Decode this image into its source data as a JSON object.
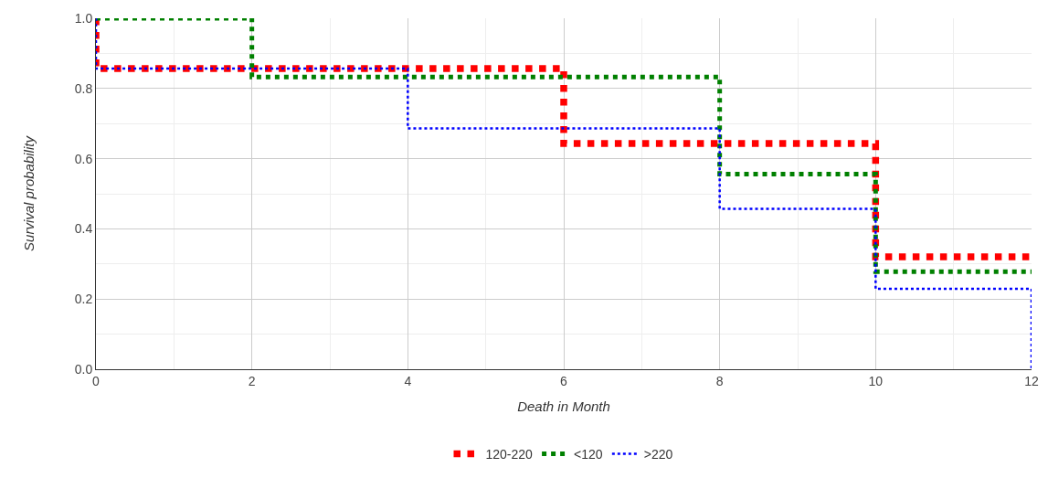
{
  "chart_data": {
    "type": "step",
    "xlabel": "Death in Month",
    "ylabel": "Survival probability",
    "series": [
      {
        "name": "120-220",
        "color": "#ff0000",
        "x": [
          0,
          0,
          6,
          10,
          12
        ],
        "values": [
          1.0,
          0.857,
          0.643,
          0.32,
          0.32
        ]
      },
      {
        "name": "<120",
        "color": "#008000",
        "x": [
          0,
          2,
          8,
          10,
          12
        ],
        "values": [
          1.0,
          0.833,
          0.556,
          0.278,
          0.278
        ]
      },
      {
        "name": ">220",
        "color": "#0000ff",
        "x": [
          0,
          0,
          4,
          8,
          10,
          12,
          12
        ],
        "values": [
          1.0,
          0.857,
          0.686,
          0.457,
          0.229,
          0.229,
          0.0
        ]
      }
    ],
    "xlim": [
      0,
      12
    ],
    "xticks": [
      0,
      2,
      4,
      6,
      8,
      10,
      12
    ],
    "ylim": [
      0,
      1
    ],
    "yticks": [
      {
        "value": 0,
        "label": "0.0"
      },
      {
        "value": 0.2,
        "label": "0.2"
      },
      {
        "value": 0.4,
        "label": "0.4"
      },
      {
        "value": 0.6,
        "label": "0.6"
      },
      {
        "value": 0.8,
        "label": "0.8"
      },
      {
        "value": 1,
        "label": "1.0"
      }
    ],
    "grid": true,
    "legend": "bottom",
    "line_style": "dotted",
    "marker": "none"
  }
}
